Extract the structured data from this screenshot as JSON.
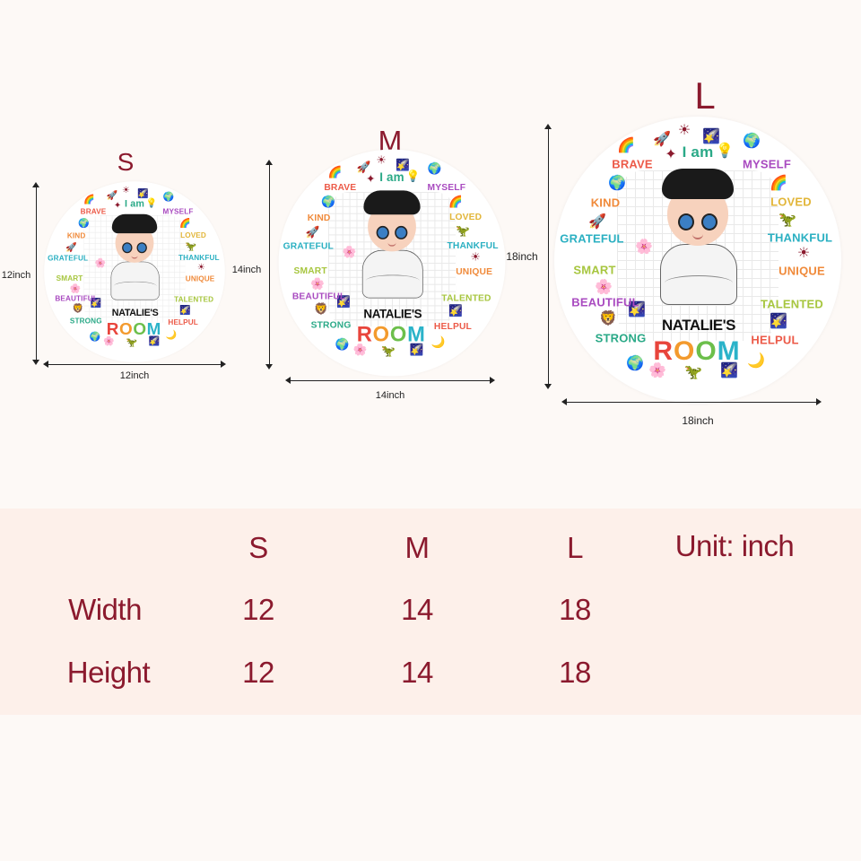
{
  "sizes": [
    {
      "letter": "S",
      "width_label": "12inch",
      "height_label": "12inch"
    },
    {
      "letter": "M",
      "width_label": "14inch",
      "height_label": "14inch"
    },
    {
      "letter": "L",
      "width_label": "18inch",
      "height_label": "18inch"
    }
  ],
  "sign": {
    "intro": "I am",
    "name": "NATALIE'S",
    "room": "ROOM",
    "room_colors": [
      "#e8453c",
      "#f39a2d",
      "#6cbf4b",
      "#2bb3c9"
    ],
    "words": [
      {
        "text": "BRAVE",
        "color": "#ec5a48"
      },
      {
        "text": "MYSELF",
        "color": "#a94bc0"
      },
      {
        "text": "KIND",
        "color": "#f08a3a"
      },
      {
        "text": "LOVED",
        "color": "#e2b63a"
      },
      {
        "text": "GRATEFUL",
        "color": "#2bb0c2"
      },
      {
        "text": "THANKFUL",
        "color": "#2bb0c2"
      },
      {
        "text": "SMART",
        "color": "#a7c63f"
      },
      {
        "text": "UNIQUE",
        "color": "#f08a3a"
      },
      {
        "text": "BEAUTIFUL",
        "color": "#a94bc0"
      },
      {
        "text": "TALENTED",
        "color": "#a7c63f"
      },
      {
        "text": "STRONG",
        "color": "#2aa987"
      },
      {
        "text": "HELPUL",
        "color": "#ec5a48"
      }
    ],
    "intro_color": "#2aa987",
    "decorations": [
      "rainbow-icon",
      "rocket-icon",
      "sun-icon",
      "earth-icon",
      "lightbulb-icon",
      "star-icon",
      "dinosaur-icon",
      "flower-icon",
      "lion-icon",
      "moon-icon",
      "shooting-star-icon"
    ]
  },
  "table": {
    "unit": "Unit: inch",
    "columns": [
      "S",
      "M",
      "L"
    ],
    "rows": [
      {
        "label": "Width",
        "values": [
          "12",
          "14",
          "18"
        ]
      },
      {
        "label": "Height",
        "values": [
          "12",
          "14",
          "18"
        ]
      }
    ]
  },
  "text_color": "#8b1a2e",
  "band_color": "#fdf0ea"
}
